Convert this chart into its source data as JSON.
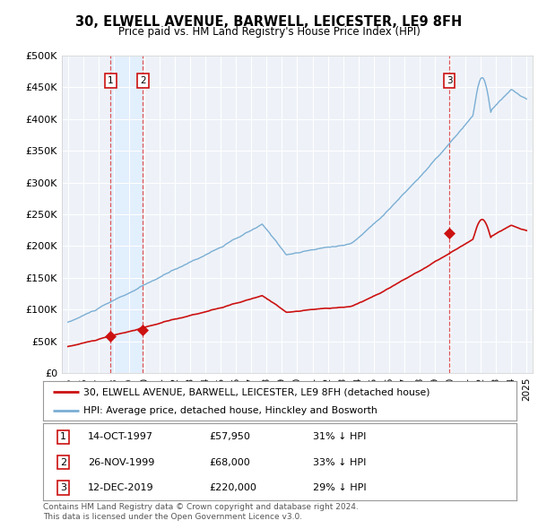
{
  "title": "30, ELWELL AVENUE, BARWELL, LEICESTER, LE9 8FH",
  "subtitle": "Price paid vs. HM Land Registry's House Price Index (HPI)",
  "ylim": [
    0,
    500000
  ],
  "yticks": [
    0,
    50000,
    100000,
    150000,
    200000,
    250000,
    300000,
    350000,
    400000,
    450000,
    500000
  ],
  "ytick_labels": [
    "£0",
    "£50K",
    "£100K",
    "£150K",
    "£200K",
    "£250K",
    "£300K",
    "£350K",
    "£400K",
    "£450K",
    "£500K"
  ],
  "xlim_start": 1994.6,
  "xlim_end": 2025.4,
  "sale_dates": [
    1997.79,
    1999.9,
    2019.95
  ],
  "sale_prices": [
    57950,
    68000,
    220000
  ],
  "sale_labels": [
    "1",
    "2",
    "3"
  ],
  "hpi_line_color": "#7aaed4",
  "price_line_color": "#cc1111",
  "sale_dot_color": "#cc1111",
  "vline_color": "#dd4444",
  "shade_color": "#ddeeff",
  "background_color": "#ffffff",
  "plot_bg_color": "#eef2f8",
  "grid_color": "#ffffff",
  "legend_entries": [
    "30, ELWELL AVENUE, BARWELL, LEICESTER, LE9 8FH (detached house)",
    "HPI: Average price, detached house, Hinckley and Bosworth"
  ],
  "table_rows": [
    [
      "1",
      "14-OCT-1997",
      "£57,950",
      "31% ↓ HPI"
    ],
    [
      "2",
      "26-NOV-1999",
      "£68,000",
      "33% ↓ HPI"
    ],
    [
      "3",
      "12-DEC-2019",
      "£220,000",
      "29% ↓ HPI"
    ]
  ],
  "footnote1": "Contains HM Land Registry data © Crown copyright and database right 2024.",
  "footnote2": "This data is licensed under the Open Government Licence v3.0."
}
